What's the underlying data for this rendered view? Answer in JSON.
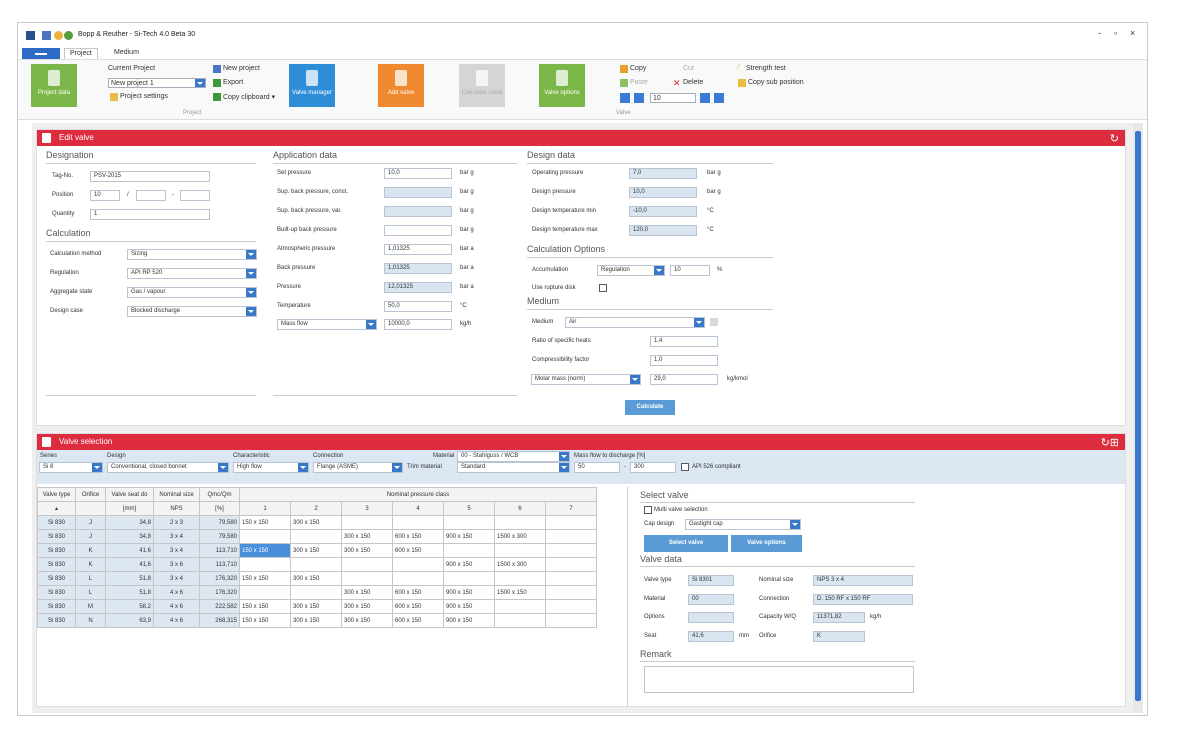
{
  "app": {
    "title": "Bopp & Reuther - Si-Tech 4.0 Beta 30",
    "window_controls": [
      "-",
      "▫",
      "×"
    ]
  },
  "ribbon": {
    "tabs": [
      "Project",
      "Medium"
    ],
    "project_data": "Project data",
    "current_project_label": "Current Project",
    "current_project_value": "New project 1",
    "project_settings": "Project settings",
    "new_project": "New project",
    "export": "Export",
    "copy_clipboard": "Copy clipboard ▾",
    "group_project": "Project",
    "valve_manager": "Valve manager",
    "add_valve": "Add valve",
    "calculate_valve": "Calculate valve",
    "valve_options": "Valve options",
    "copy": "Copy",
    "paste": "Paste",
    "cut": "Cut",
    "delete": "Delete",
    "count": "10",
    "group_valve": "Valve",
    "strength_test": "Strength test",
    "copy_sub_position": "Copy sub position"
  },
  "edit_valve": {
    "header": "Edit valve",
    "designation": {
      "title": "Designation",
      "tag_label": "Tag-No.",
      "tag_value": "PSV-2015",
      "position_label": "Position",
      "position_value": "10",
      "position_sep1": "/",
      "position_sep2": "-",
      "quantity_label": "Quantity",
      "quantity_value": "1"
    },
    "calculation": {
      "title": "Calculation",
      "method_label": "Calculation method",
      "method_value": "Sizing",
      "regulation_label": "Regulation",
      "regulation_value": "API RP 520",
      "aggregate_label": "Aggregate state",
      "aggregate_value": "Gas / vapour",
      "design_case_label": "Design case",
      "design_case_value": "Blocked discharge"
    },
    "application": {
      "title": "Application data",
      "rows": [
        {
          "label": "Set pressure",
          "value": "10,0",
          "unit": "bar g",
          "ro": false
        },
        {
          "label": "Sup. back pressure, const.",
          "value": "",
          "unit": "bar g",
          "ro": true
        },
        {
          "label": "Sup. back pressure, var.",
          "value": "",
          "unit": "bar g",
          "ro": true
        },
        {
          "label": "Built-up back pressure",
          "value": "",
          "unit": "bar g",
          "ro": false
        },
        {
          "label": "Atmospheric pressure",
          "value": "1,01325",
          "unit": "bar a",
          "ro": false
        },
        {
          "label": "Back pressure",
          "value": "1,01325",
          "unit": "bar a",
          "ro": true
        },
        {
          "label": "Pressure",
          "value": "12,01325",
          "unit": "bar a",
          "ro": true
        },
        {
          "label": "Temperature",
          "value": "50,0",
          "unit": "°C",
          "ro": false
        }
      ],
      "flow_type": "Mass flow",
      "flow_value": "10000,0",
      "flow_unit": "kg/h"
    },
    "design": {
      "title": "Design data",
      "rows": [
        {
          "label": "Operating pressure",
          "value": "7,0",
          "unit": "bar g"
        },
        {
          "label": "Design pressure",
          "value": "10,0",
          "unit": "bar g"
        },
        {
          "label": "Design temperature min",
          "value": "-10,0",
          "unit": "°C"
        },
        {
          "label": "Design temperature max",
          "value": "120,0",
          "unit": "°C"
        }
      ]
    },
    "calc_options": {
      "title": "Calculation Options",
      "accumulation_label": "Accumulation",
      "accumulation_mode": "Regulation",
      "accumulation_value": "10",
      "accumulation_unit": "%",
      "rupture_label": "Use rupture disk"
    },
    "medium": {
      "title": "Medium",
      "medium_label": "Medium",
      "medium_value": "Air",
      "ratio_label": "Ratio of specific heats",
      "ratio_value": "1,4",
      "compress_label": "Compressibility factor",
      "compress_value": "1,0",
      "molar_type": "Molar mass (norm)",
      "molar_value": "29,0",
      "molar_unit": "kg/kmol"
    },
    "calculate_button": "Calculate"
  },
  "valve_selection": {
    "header": "Valve selection",
    "filters": {
      "series_label": "Series",
      "series_value": "Si 8",
      "design_label": "Design",
      "design_value": "Conventional, closed bonnet",
      "char_label": "Characteristic",
      "char_value": "High flow",
      "conn_label": "Connection",
      "conn_value": "Flange (ASME)",
      "material_label": "Material",
      "material_value": "00 - Stahlguss / WCB",
      "trim_label": "Trim material",
      "trim_value": "Standard",
      "massflow_label": "Mass flow to discharge [%]",
      "massflow_from": "50",
      "massflow_sep": "-",
      "massflow_to": "300",
      "api_label": "API 526 compliant"
    },
    "table": {
      "header1": [
        "Valve type",
        "Orifice",
        "Valve seat do",
        "Nominal size",
        "Qmc/Qm",
        "Nominal pressure class"
      ],
      "header2": [
        "▴",
        "",
        "[mm]",
        "NPS",
        "[%]",
        "1",
        "2",
        "3",
        "4",
        "5",
        "6",
        "7"
      ],
      "rows": [
        [
          "Si 830",
          "J",
          "34,8",
          "2 x 3",
          "79,580",
          "150 x 150",
          "300 x 150",
          "",
          "",
          "",
          "",
          ""
        ],
        [
          "Si 830",
          "J",
          "34,8",
          "3 x 4",
          "79,580",
          "",
          "",
          "300 x 150",
          "600 x 150",
          "900 x 150",
          "1500 x 300",
          ""
        ],
        [
          "Si 830",
          "K",
          "41,6",
          "3 x 4",
          "113,710",
          "150 x 150",
          "300 x 150",
          "300 x 150",
          "600 x 150",
          "",
          "",
          ""
        ],
        [
          "Si 830",
          "K",
          "41,6",
          "3 x 6",
          "113,710",
          "",
          "",
          "",
          "",
          "900 x 150",
          "1500 x 300",
          ""
        ],
        [
          "Si 830",
          "L",
          "51,8",
          "3 x 4",
          "176,320",
          "150 x 150",
          "300 x 150",
          "",
          "",
          "",
          "",
          ""
        ],
        [
          "Si 830",
          "L",
          "51,8",
          "4 x 6",
          "176,320",
          "",
          "",
          "300 x 150",
          "600 x 150",
          "900 x 150",
          "1500 x 150",
          ""
        ],
        [
          "Si 830",
          "M",
          "58,2",
          "4 x 6",
          "222,582",
          "150 x 150",
          "300 x 150",
          "300 x 150",
          "600 x 150",
          "900 x 150",
          "",
          ""
        ],
        [
          "Si 830",
          "N",
          "63,9",
          "4 x 6",
          "268,315",
          "150 x 150",
          "300 x 150",
          "300 x 150",
          "600 x 150",
          "900 x 150",
          "",
          ""
        ]
      ]
    },
    "select": {
      "title": "Select valve",
      "multi_label": "Multi valve selection",
      "cap_label": "Cap design",
      "cap_value": "Gastight cap",
      "select_button": "Select valve",
      "options_button": "Valve options"
    },
    "valve_data": {
      "title": "Valve data",
      "type_label": "Valve type",
      "type_value": "Si 8301",
      "nominal_label": "Nominal size",
      "nominal_value": "NPS 3 x 4",
      "material_label": "Material",
      "material_value": "00",
      "connection_label": "Connection",
      "connection_value": "D. 150 RF x 150 RF",
      "options_label": "Options",
      "capacity_label": "Capacity W/Q",
      "capacity_value": "11371,82",
      "capacity_unit": "kg/h",
      "seat_label": "Seat",
      "seat_value": "41,6",
      "seat_unit": "mm",
      "orifice_label": "Orifice",
      "orifice_value": "K",
      "remark_label": "Remark"
    }
  },
  "colors": {
    "header_red": "#dd2c3e",
    "accent_blue": "#3a78c9",
    "green": "#7ab648",
    "orange": "#f08a30",
    "readonly_blue": "#d9e6f2"
  }
}
